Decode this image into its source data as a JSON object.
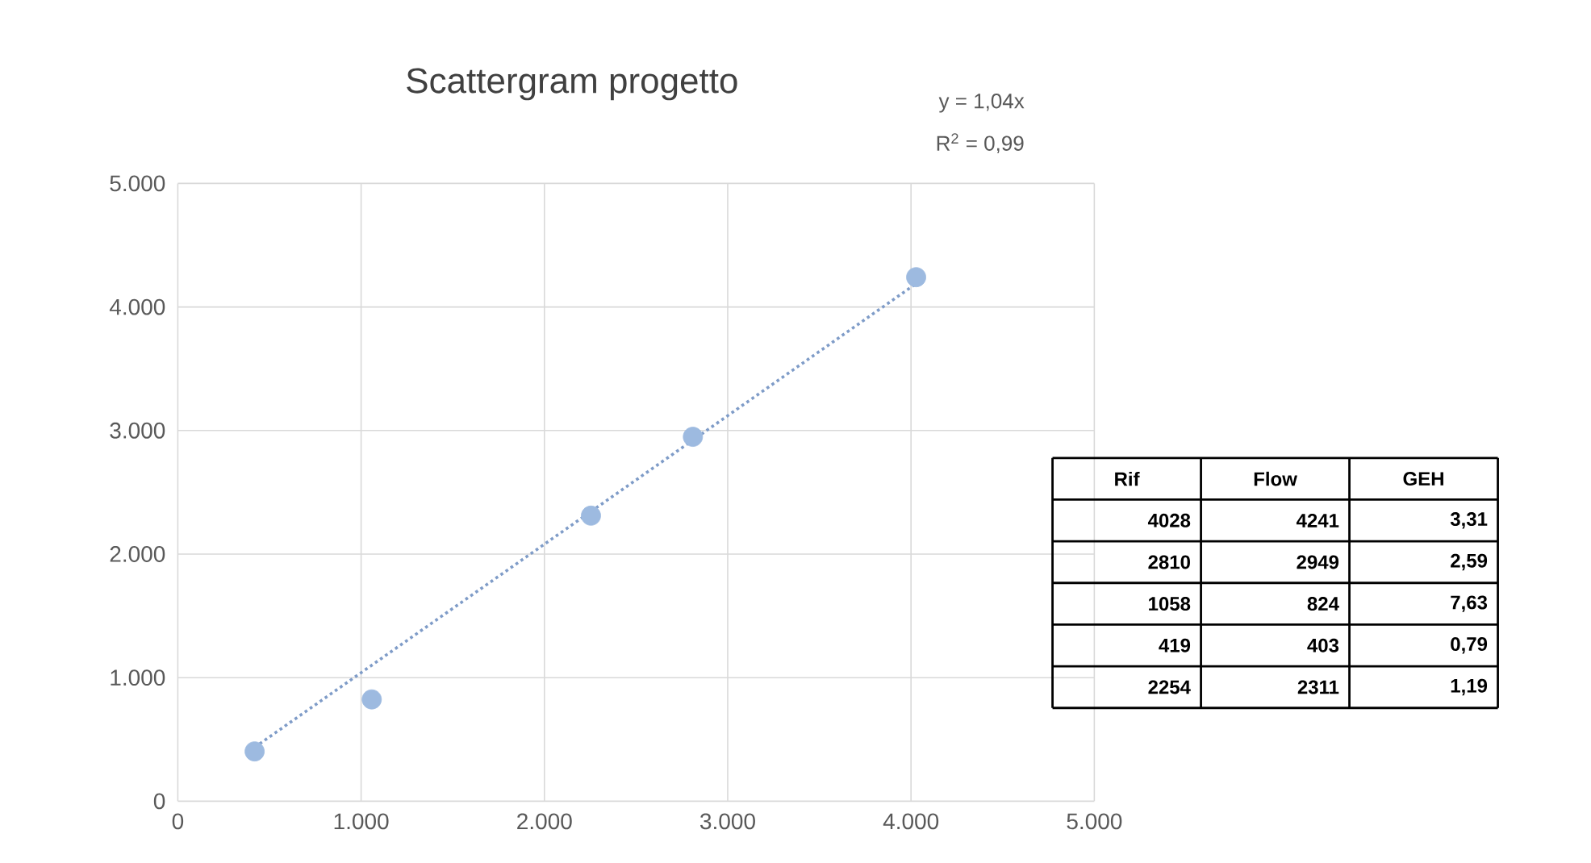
{
  "chart_data": [
    {
      "type": "scatter",
      "title": "Scattergram progetto",
      "series": [
        {
          "type": "scatter",
          "color": "#9dbae0",
          "marker": "circle",
          "x": [
            4028,
            2810,
            1058,
            419,
            2254
          ],
          "values": [
            4241,
            2949,
            824,
            403,
            2311
          ]
        },
        {
          "type": "line",
          "color": "#7f9cc8",
          "line_style": "dotted",
          "x": [
            419,
            4028
          ],
          "values": [
            436,
            4189
          ]
        }
      ],
      "xlim": [
        0,
        5000
      ],
      "ylim": [
        0,
        5000
      ],
      "xticks": [
        0,
        {
          "value": 1000,
          "label": "1.000"
        },
        {
          "value": 2000,
          "label": "2.000"
        },
        {
          "value": 3000,
          "label": "3.000"
        },
        {
          "value": 4000,
          "label": "4.000"
        },
        {
          "value": 5000,
          "label": "5.000"
        }
      ],
      "yticks": [
        0,
        {
          "value": 1000,
          "label": "1.000"
        },
        {
          "value": 2000,
          "label": "2.000"
        },
        {
          "value": 3000,
          "label": "3.000"
        },
        {
          "value": 4000,
          "label": "4.000"
        },
        {
          "value": 5000,
          "label": "5.000"
        }
      ],
      "grid": true,
      "annotations": [
        "y = 1,04x",
        "R$^{2}$ = 0,99"
      ]
    },
    {
      "type": "other",
      "categories": [
        "Rif",
        "Flow",
        "GEH"
      ],
      "annotations": [
        "4028",
        "4241",
        "3,31",
        "2810",
        "2949",
        "2,59",
        "1058",
        "824",
        "7,63",
        "419",
        "403",
        "0,79",
        "2254",
        "2311",
        "1,19"
      ]
    }
  ]
}
